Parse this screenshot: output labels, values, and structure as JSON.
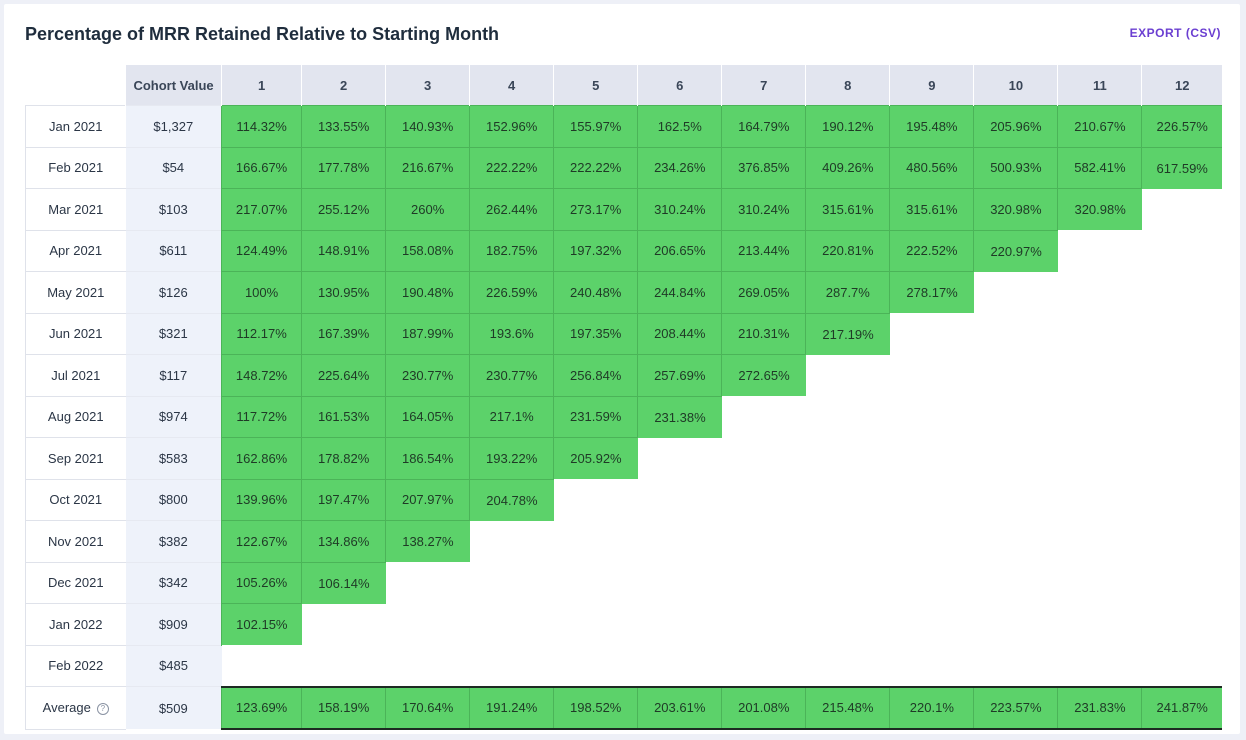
{
  "header": {
    "title": "Percentage of MRR Retained Relative to Starting Month",
    "export_label": "EXPORT (CSV)"
  },
  "table": {
    "cohort_value_header": "Cohort Value",
    "month_headers": [
      "1",
      "2",
      "3",
      "4",
      "5",
      "6",
      "7",
      "8",
      "9",
      "10",
      "11",
      "12"
    ],
    "rows": [
      {
        "cohort": "Jan 2021",
        "value": "$1,327",
        "cells": [
          "114.32%",
          "133.55%",
          "140.93%",
          "152.96%",
          "155.97%",
          "162.5%",
          "164.79%",
          "190.12%",
          "195.48%",
          "205.96%",
          "210.67%",
          "226.57%"
        ]
      },
      {
        "cohort": "Feb 2021",
        "value": "$54",
        "cells": [
          "166.67%",
          "177.78%",
          "216.67%",
          "222.22%",
          "222.22%",
          "234.26%",
          "376.85%",
          "409.26%",
          "480.56%",
          "500.93%",
          "582.41%",
          "617.59%"
        ]
      },
      {
        "cohort": "Mar 2021",
        "value": "$103",
        "cells": [
          "217.07%",
          "255.12%",
          "260%",
          "262.44%",
          "273.17%",
          "310.24%",
          "310.24%",
          "315.61%",
          "315.61%",
          "320.98%",
          "320.98%"
        ]
      },
      {
        "cohort": "Apr 2021",
        "value": "$611",
        "cells": [
          "124.49%",
          "148.91%",
          "158.08%",
          "182.75%",
          "197.32%",
          "206.65%",
          "213.44%",
          "220.81%",
          "222.52%",
          "220.97%"
        ]
      },
      {
        "cohort": "May 2021",
        "value": "$126",
        "cells": [
          "100%",
          "130.95%",
          "190.48%",
          "226.59%",
          "240.48%",
          "244.84%",
          "269.05%",
          "287.7%",
          "278.17%"
        ]
      },
      {
        "cohort": "Jun 2021",
        "value": "$321",
        "cells": [
          "112.17%",
          "167.39%",
          "187.99%",
          "193.6%",
          "197.35%",
          "208.44%",
          "210.31%",
          "217.19%"
        ]
      },
      {
        "cohort": "Jul 2021",
        "value": "$117",
        "cells": [
          "148.72%",
          "225.64%",
          "230.77%",
          "230.77%",
          "256.84%",
          "257.69%",
          "272.65%"
        ]
      },
      {
        "cohort": "Aug 2021",
        "value": "$974",
        "cells": [
          "117.72%",
          "161.53%",
          "164.05%",
          "217.1%",
          "231.59%",
          "231.38%"
        ]
      },
      {
        "cohort": "Sep 2021",
        "value": "$583",
        "cells": [
          "162.86%",
          "178.82%",
          "186.54%",
          "193.22%",
          "205.92%"
        ]
      },
      {
        "cohort": "Oct 2021",
        "value": "$800",
        "cells": [
          "139.96%",
          "197.47%",
          "207.97%",
          "204.78%"
        ]
      },
      {
        "cohort": "Nov 2021",
        "value": "$382",
        "cells": [
          "122.67%",
          "134.86%",
          "138.27%"
        ]
      },
      {
        "cohort": "Dec 2021",
        "value": "$342",
        "cells": [
          "105.26%",
          "106.14%"
        ]
      },
      {
        "cohort": "Jan 2022",
        "value": "$909",
        "cells": [
          "102.15%"
        ]
      },
      {
        "cohort": "Feb 2022",
        "value": "$485",
        "cells": []
      }
    ],
    "average": {
      "label": "Average",
      "help_glyph": "?",
      "value": "$509",
      "cells": [
        "123.69%",
        "158.19%",
        "170.64%",
        "191.24%",
        "198.52%",
        "203.61%",
        "201.08%",
        "215.48%",
        "220.1%",
        "223.57%",
        "231.83%",
        "241.87%"
      ]
    }
  },
  "colors": {
    "cell_fill": "#5cd26a",
    "header_fill": "#e2e5ef",
    "cohort_value_fill": "#eef2fa",
    "export_link": "#6b3fd1"
  }
}
